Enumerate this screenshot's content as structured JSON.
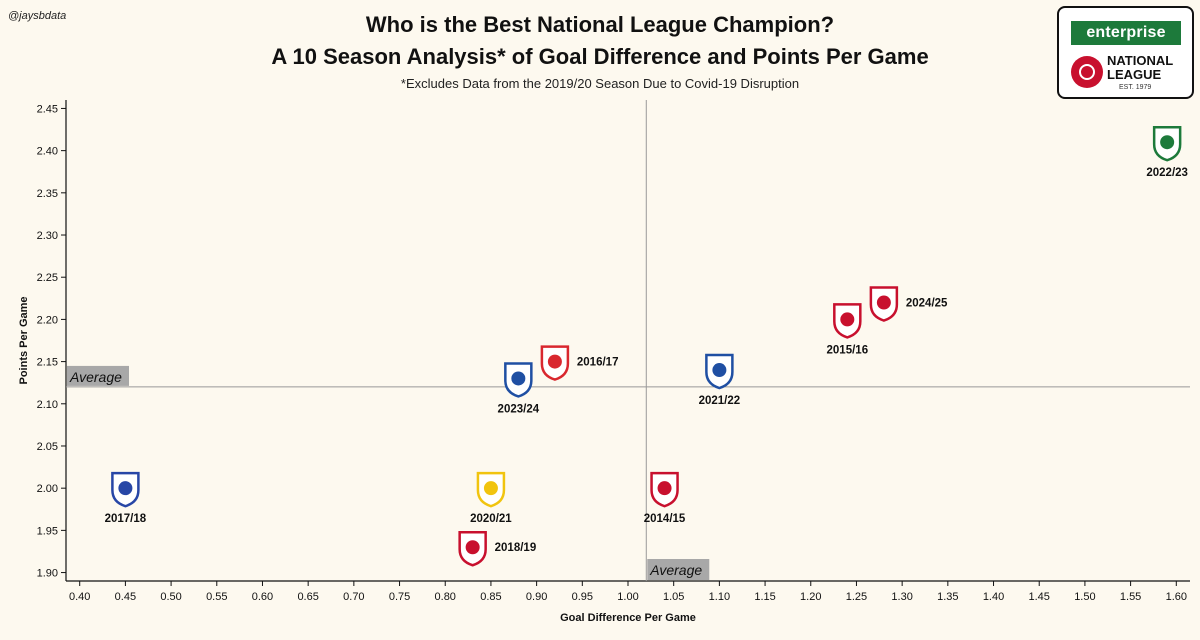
{
  "credit": "@jaysbdata",
  "title_line1": "Who is the Best National League Champion?",
  "title_line2": "A 10 Season Analysis* of Goal Difference and Points Per Game",
  "subtitle": "*Excludes Data from the 2019/20 Season Due to Covid-19 Disruption",
  "logo": {
    "sponsor_text": "enterprise",
    "league_text_line1": "NATIONAL",
    "league_text_line2": "LEAGUE",
    "league_est": "EST. 1979"
  },
  "chart_data": {
    "type": "scatter",
    "xlabel": "Goal Difference Per Game",
    "ylabel": "Points Per Game",
    "xlim": [
      0.385,
      1.615
    ],
    "ylim": [
      1.89,
      2.46
    ],
    "xticks": [
      "0.40",
      "0.45",
      "0.50",
      "0.55",
      "0.60",
      "0.65",
      "0.70",
      "0.75",
      "0.80",
      "0.85",
      "0.90",
      "0.95",
      "1.00",
      "1.05",
      "1.10",
      "1.15",
      "1.20",
      "1.25",
      "1.30",
      "1.35",
      "1.40",
      "1.45",
      "1.50",
      "1.55",
      "1.60"
    ],
    "yticks": [
      "1.90",
      "1.95",
      "2.00",
      "2.05",
      "2.10",
      "2.15",
      "2.20",
      "2.25",
      "2.30",
      "2.35",
      "2.40",
      "2.45"
    ],
    "average_label": "Average",
    "average_x": 1.02,
    "average_y": 2.12,
    "grid": false,
    "points": [
      {
        "season": "2022/23",
        "x": 1.59,
        "y": 2.41,
        "crest_color": "#1d7a3b",
        "label_pos": "below"
      },
      {
        "season": "2024/25",
        "x": 1.28,
        "y": 2.22,
        "crest_color": "#c8102e",
        "label_pos": "right"
      },
      {
        "season": "2015/16",
        "x": 1.24,
        "y": 2.2,
        "crest_color": "#c8102e",
        "label_pos": "below"
      },
      {
        "season": "2016/17",
        "x": 0.92,
        "y": 2.15,
        "crest_color": "#d9272e",
        "label_pos": "right"
      },
      {
        "season": "2023/24",
        "x": 0.88,
        "y": 2.13,
        "crest_color": "#1f4fa3",
        "label_pos": "below"
      },
      {
        "season": "2021/22",
        "x": 1.1,
        "y": 2.14,
        "crest_color": "#1f4fa3",
        "label_pos": "below"
      },
      {
        "season": "2017/18",
        "x": 0.45,
        "y": 2.0,
        "crest_color": "#2746a6",
        "label_pos": "below"
      },
      {
        "season": "2020/21",
        "x": 0.85,
        "y": 2.0,
        "crest_color": "#f1c40f",
        "label_pos": "below"
      },
      {
        "season": "2014/15",
        "x": 1.04,
        "y": 2.0,
        "crest_color": "#c8102e",
        "label_pos": "below"
      },
      {
        "season": "2018/19",
        "x": 0.83,
        "y": 1.93,
        "crest_color": "#c8102e",
        "label_pos": "right"
      }
    ]
  }
}
